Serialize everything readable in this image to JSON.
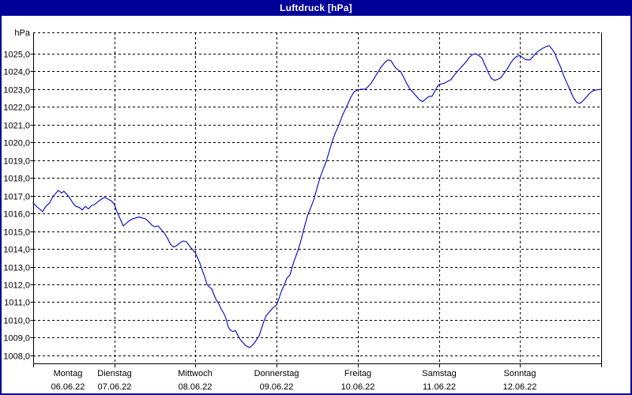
{
  "window": {
    "title": "Luftdruck [hPa]",
    "colors": {
      "titlebar_bg": "#000099",
      "border": "#000099",
      "background": "#ffffff",
      "grid": "#000000",
      "line": "#0000cc"
    }
  },
  "chart_data": {
    "type": "line",
    "title": "Luftdruck [hPa]",
    "grid": "dashed",
    "legend_position": "none",
    "y_axis": {
      "unit_label": "hPa",
      "min": 1007.55,
      "max": 1026.2,
      "tick_values": [
        1008,
        1009,
        1010,
        1011,
        1012,
        1013,
        1014,
        1015,
        1016,
        1017,
        1018,
        1019,
        1020,
        1021,
        1022,
        1023,
        1024,
        1025
      ],
      "tick_labels": [
        "1008,0",
        "1009,0",
        "1010,0",
        "1011,0",
        "1012,0",
        "1013,0",
        "1014,0",
        "1015,0",
        "1016,0",
        "1017,0",
        "1018,0",
        "1019,0",
        "1020,0",
        "1021,0",
        "1022,0",
        "1023,0",
        "1024,0",
        "1025,0"
      ]
    },
    "x_axis": {
      "range_days": [
        0,
        7
      ],
      "days": [
        {
          "weekday": "Montag",
          "date": "06.06.22"
        },
        {
          "weekday": "Dienstag",
          "date": "07.06.22"
        },
        {
          "weekday": "Mittwoch",
          "date": "08.06.22"
        },
        {
          "weekday": "Donnerstag",
          "date": "09.06.22"
        },
        {
          "weekday": "Freitag",
          "date": "10.06.22"
        },
        {
          "weekday": "Samstag",
          "date": "11.06.22"
        },
        {
          "weekday": "Sonntag",
          "date": "12.06.22"
        }
      ]
    },
    "series": [
      {
        "name": "Luftdruck",
        "color": "#0000cc",
        "points": [
          [
            0.0,
            1016.6
          ],
          [
            0.039,
            1016.4
          ],
          [
            0.078,
            1016.25
          ],
          [
            0.117,
            1016.1
          ],
          [
            0.156,
            1016.4
          ],
          [
            0.204,
            1016.6
          ],
          [
            0.243,
            1016.95
          ],
          [
            0.282,
            1017.15
          ],
          [
            0.312,
            1017.3
          ],
          [
            0.35,
            1017.15
          ],
          [
            0.38,
            1017.25
          ],
          [
            0.409,
            1017.1
          ],
          [
            0.448,
            1016.9
          ],
          [
            0.487,
            1016.6
          ],
          [
            0.526,
            1016.4
          ],
          [
            0.565,
            1016.35
          ],
          [
            0.604,
            1016.2
          ],
          [
            0.643,
            1016.4
          ],
          [
            0.681,
            1016.25
          ],
          [
            0.72,
            1016.45
          ],
          [
            0.759,
            1016.5
          ],
          [
            0.808,
            1016.7
          ],
          [
            0.857,
            1016.85
          ],
          [
            0.886,
            1016.9
          ],
          [
            0.925,
            1016.8
          ],
          [
            0.964,
            1016.7
          ],
          [
            1.003,
            1016.5
          ],
          [
            1.032,
            1016.1
          ],
          [
            1.071,
            1015.7
          ],
          [
            1.11,
            1015.3
          ],
          [
            1.149,
            1015.45
          ],
          [
            1.188,
            1015.6
          ],
          [
            1.227,
            1015.7
          ],
          [
            1.266,
            1015.75
          ],
          [
            1.304,
            1015.8
          ],
          [
            1.343,
            1015.75
          ],
          [
            1.382,
            1015.7
          ],
          [
            1.421,
            1015.55
          ],
          [
            1.46,
            1015.35
          ],
          [
            1.499,
            1015.25
          ],
          [
            1.538,
            1015.3
          ],
          [
            1.577,
            1015.1
          ],
          [
            1.616,
            1014.9
          ],
          [
            1.655,
            1014.6
          ],
          [
            1.694,
            1014.25
          ],
          [
            1.733,
            1014.1
          ],
          [
            1.772,
            1014.2
          ],
          [
            1.811,
            1014.35
          ],
          [
            1.85,
            1014.45
          ],
          [
            1.889,
            1014.4
          ],
          [
            1.928,
            1014.15
          ],
          [
            1.967,
            1013.95
          ],
          [
            1.996,
            1013.8
          ],
          [
            2.025,
            1013.5
          ],
          [
            2.054,
            1013.2
          ],
          [
            2.083,
            1012.8
          ],
          [
            2.113,
            1012.45
          ],
          [
            2.142,
            1012.0
          ],
          [
            2.171,
            1011.85
          ],
          [
            2.2,
            1011.75
          ],
          [
            2.229,
            1011.4
          ],
          [
            2.259,
            1011.1
          ],
          [
            2.288,
            1010.9
          ],
          [
            2.317,
            1010.6
          ],
          [
            2.346,
            1010.4
          ],
          [
            2.375,
            1010.1
          ],
          [
            2.405,
            1009.6
          ],
          [
            2.434,
            1009.4
          ],
          [
            2.463,
            1009.35
          ],
          [
            2.492,
            1009.4
          ],
          [
            2.521,
            1009.15
          ],
          [
            2.551,
            1008.9
          ],
          [
            2.58,
            1008.75
          ],
          [
            2.609,
            1008.6
          ],
          [
            2.638,
            1008.5
          ],
          [
            2.667,
            1008.45
          ],
          [
            2.696,
            1008.55
          ],
          [
            2.726,
            1008.7
          ],
          [
            2.755,
            1008.9
          ],
          [
            2.784,
            1009.1
          ],
          [
            2.813,
            1009.5
          ],
          [
            2.842,
            1009.9
          ],
          [
            2.872,
            1010.25
          ],
          [
            2.901,
            1010.4
          ],
          [
            2.93,
            1010.55
          ],
          [
            2.959,
            1010.7
          ],
          [
            3.0,
            1010.85
          ],
          [
            3.029,
            1011.2
          ],
          [
            3.058,
            1011.6
          ],
          [
            3.097,
            1012.0
          ],
          [
            3.126,
            1012.35
          ],
          [
            3.165,
            1012.55
          ],
          [
            3.214,
            1013.3
          ],
          [
            3.262,
            1013.9
          ],
          [
            3.301,
            1014.5
          ],
          [
            3.34,
            1015.2
          ],
          [
            3.379,
            1015.85
          ],
          [
            3.418,
            1016.3
          ],
          [
            3.457,
            1016.75
          ],
          [
            3.496,
            1017.4
          ],
          [
            3.535,
            1018.0
          ],
          [
            3.574,
            1018.5
          ],
          [
            3.613,
            1018.95
          ],
          [
            3.652,
            1019.55
          ],
          [
            3.681,
            1020.0
          ],
          [
            3.72,
            1020.5
          ],
          [
            3.769,
            1021.0
          ],
          [
            3.818,
            1021.6
          ],
          [
            3.866,
            1022.05
          ],
          [
            3.915,
            1022.55
          ],
          [
            3.954,
            1022.85
          ],
          [
            3.993,
            1022.95
          ],
          [
            4.041,
            1023.0
          ],
          [
            4.09,
            1023.0
          ],
          [
            4.129,
            1023.15
          ],
          [
            4.168,
            1023.35
          ],
          [
            4.207,
            1023.65
          ],
          [
            4.255,
            1024.0
          ],
          [
            4.294,
            1024.3
          ],
          [
            4.333,
            1024.5
          ],
          [
            4.372,
            1024.65
          ],
          [
            4.411,
            1024.6
          ],
          [
            4.45,
            1024.3
          ],
          [
            4.489,
            1024.1
          ],
          [
            4.528,
            1024.0
          ],
          [
            4.567,
            1023.65
          ],
          [
            4.606,
            1023.3
          ],
          [
            4.645,
            1023.0
          ],
          [
            4.684,
            1022.8
          ],
          [
            4.723,
            1022.6
          ],
          [
            4.762,
            1022.4
          ],
          [
            4.8,
            1022.3
          ],
          [
            4.839,
            1022.45
          ],
          [
            4.878,
            1022.6
          ],
          [
            4.917,
            1022.6
          ],
          [
            4.956,
            1022.95
          ],
          [
            4.995,
            1023.25
          ],
          [
            5.034,
            1023.3
          ],
          [
            5.073,
            1023.35
          ],
          [
            5.112,
            1023.45
          ],
          [
            5.151,
            1023.55
          ],
          [
            5.19,
            1023.8
          ],
          [
            5.238,
            1024.05
          ],
          [
            5.287,
            1024.3
          ],
          [
            5.336,
            1024.55
          ],
          [
            5.375,
            1024.8
          ],
          [
            5.414,
            1024.95
          ],
          [
            5.453,
            1025.0
          ],
          [
            5.492,
            1024.9
          ],
          [
            5.531,
            1024.75
          ],
          [
            5.57,
            1024.35
          ],
          [
            5.608,
            1023.95
          ],
          [
            5.647,
            1023.6
          ],
          [
            5.686,
            1023.5
          ],
          [
            5.725,
            1023.55
          ],
          [
            5.764,
            1023.65
          ],
          [
            5.803,
            1023.9
          ],
          [
            5.842,
            1024.15
          ],
          [
            5.881,
            1024.45
          ],
          [
            5.92,
            1024.7
          ],
          [
            5.959,
            1024.85
          ],
          [
            5.998,
            1024.9
          ],
          [
            6.027,
            1024.8
          ],
          [
            6.056,
            1024.7
          ],
          [
            6.085,
            1024.65
          ],
          [
            6.124,
            1024.65
          ],
          [
            6.163,
            1024.85
          ],
          [
            6.202,
            1025.05
          ],
          [
            6.241,
            1025.2
          ],
          [
            6.28,
            1025.3
          ],
          [
            6.319,
            1025.4
          ],
          [
            6.358,
            1025.45
          ],
          [
            6.387,
            1025.3
          ],
          [
            6.426,
            1025.05
          ],
          [
            6.465,
            1024.6
          ],
          [
            6.504,
            1024.2
          ],
          [
            6.543,
            1023.7
          ],
          [
            6.582,
            1023.3
          ],
          [
            6.621,
            1022.9
          ],
          [
            6.66,
            1022.5
          ],
          [
            6.699,
            1022.25
          ],
          [
            6.738,
            1022.2
          ],
          [
            6.777,
            1022.35
          ],
          [
            6.816,
            1022.55
          ],
          [
            6.855,
            1022.75
          ],
          [
            6.894,
            1022.9
          ],
          [
            6.933,
            1022.95
          ],
          [
            7.0,
            1023.0
          ]
        ]
      }
    ]
  }
}
